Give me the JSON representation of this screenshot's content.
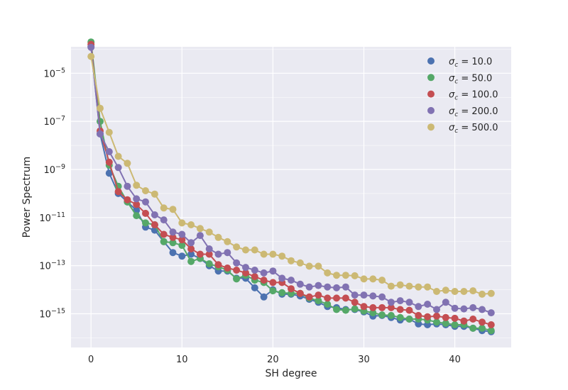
{
  "chart_data": {
    "type": "line",
    "xlabel": "SH degree",
    "ylabel": "Power Spectrum",
    "xlim": [
      -2.2,
      46.2
    ],
    "ylim_exponent": [
      -16.4,
      -3.9
    ],
    "yscale": "log",
    "grid": true,
    "legend_position": "top-right",
    "x_ticks": [
      0,
      10,
      20,
      30,
      40
    ],
    "y_ticks": [
      {
        "exp": -15,
        "base": "10",
        "sup": "−15"
      },
      {
        "exp": -13,
        "base": "10",
        "sup": "−13"
      },
      {
        "exp": -11,
        "base": "10",
        "sup": "−11"
      },
      {
        "exp": -9,
        "base": "10",
        "sup": "−9"
      },
      {
        "exp": -7,
        "base": "10",
        "sup": "−7"
      },
      {
        "exp": -5,
        "base": "10",
        "sup": "−5"
      }
    ],
    "x": [
      0,
      1,
      2,
      3,
      4,
      5,
      6,
      7,
      8,
      9,
      10,
      11,
      12,
      13,
      14,
      15,
      16,
      17,
      18,
      19,
      20,
      21,
      22,
      23,
      24,
      25,
      26,
      27,
      28,
      29,
      30,
      31,
      32,
      33,
      34,
      35,
      36,
      37,
      38,
      39,
      40,
      41,
      42,
      43,
      44
    ],
    "series": [
      {
        "name": "σc = 10.0",
        "legend_value": "10.0",
        "color": "#4c72b0",
        "values": [
          "1.3e-4",
          "3.0e-8",
          "7.0e-10",
          "1.0e-10",
          "4.5e-11",
          "2.0e-11",
          "4.0e-12",
          "3.0e-12",
          "1.0e-12",
          "3.5e-13",
          "2.5e-13",
          "3.0e-13",
          "2.0e-13",
          "1.0e-13",
          "6.0e-14",
          "6.0e-14",
          "3.0e-14",
          "3.0e-14",
          "1.2e-14",
          "5.0e-15",
          "1.0e-14",
          "6.5e-15",
          "6.5e-15",
          "5.5e-15",
          "4.0e-15",
          "3.0e-15",
          "2.0e-15",
          "1.8e-15",
          "1.5e-15",
          "1.5e-15",
          "1.2e-15",
          "8.0e-16",
          "8.5e-16",
          "7.0e-16",
          "5.5e-16",
          "6.0e-16",
          "3.8e-16",
          "3.5e-16",
          "3.8e-16",
          "3.5e-16",
          "3.0e-16",
          "3.0e-16",
          "2.5e-16",
          "2.0e-16",
          "1.8e-16"
        ]
      },
      {
        "name": "σc = 50.0",
        "legend_value": "50.0",
        "color": "#55a868",
        "values": [
          "2.0e-4",
          "1.0e-7",
          "1.5e-9",
          "2.0e-10",
          "4.5e-11",
          "1.2e-11",
          "6.0e-12",
          "5.0e-12",
          "1.0e-12",
          "9.0e-13",
          "7.0e-13",
          "1.5e-13",
          "2.0e-13",
          "1.2e-13",
          "9.0e-14",
          "6.5e-14",
          "2.8e-14",
          "4.0e-14",
          "2.5e-14",
          "2.0e-14",
          "9.0e-15",
          "7.5e-15",
          "7.0e-15",
          "7.0e-15",
          "4.5e-15",
          "3.5e-15",
          "2.5e-15",
          "1.5e-15",
          "1.4e-15",
          "1.6e-15",
          "1.3e-15",
          "1.1e-15",
          "9.0e-16",
          "8.5e-16",
          "7.0e-16",
          "6.0e-16",
          "6.0e-16",
          "5.5e-16",
          "4.5e-16",
          "4.0e-16",
          "3.5e-16",
          "3.5e-16",
          "2.5e-16",
          "2.5e-16",
          "2.0e-16"
        ]
      },
      {
        "name": "σc = 100.0",
        "legend_value": "100.0",
        "color": "#c44e52",
        "values": [
          "1.6e-4",
          "4.0e-8",
          "2.0e-9",
          "1.2e-10",
          "5.5e-11",
          "3.5e-11",
          "1.5e-11",
          "5.0e-12",
          "2.0e-12",
          "1.5e-12",
          "1.2e-12",
          "5.0e-13",
          "3.0e-13",
          "3.0e-13",
          "1.1e-13",
          "8.0e-14",
          "6.5e-14",
          "5.0e-14",
          "3.5e-14",
          "2.5e-14",
          "2.0e-14",
          "2.0e-14",
          "1.1e-14",
          "7.0e-15",
          "5.0e-15",
          "6.0e-15",
          "4.5e-15",
          "4.5e-15",
          "4.5e-15",
          "3.0e-15",
          "2.0e-15",
          "1.8e-15",
          "1.8e-15",
          "1.8e-15",
          "1.5e-15",
          "1.4e-15",
          "8.5e-16",
          "7.5e-16",
          "8.0e-16",
          "7.0e-16",
          "6.5e-16",
          "5.0e-16",
          "6.0e-16",
          "4.5e-16",
          "3.5e-16"
        ]
      },
      {
        "name": "σc = 200.0",
        "legend_value": "200.0",
        "color": "#8172b2",
        "values": [
          "1.2e-4",
          "3.0e-8",
          "5.5e-9",
          "1.2e-9",
          "2.0e-10",
          "6.0e-11",
          "4.5e-11",
          "1.3e-11",
          "8.0e-12",
          "2.5e-12",
          "2.0e-12",
          "9.0e-13",
          "1.8e-12",
          "5.0e-13",
          "3.0e-13",
          "3.5e-13",
          "1.3e-13",
          "8.5e-14",
          "6.5e-14",
          "5.0e-14",
          "6.0e-14",
          "3.0e-14",
          "2.5e-14",
          "1.7e-14",
          "1.3e-14",
          "1.5e-14",
          "1.3e-14",
          "1.2e-14",
          "1.3e-14",
          "6.0e-15",
          "6.0e-15",
          "5.5e-15",
          "5.0e-15",
          "3.0e-15",
          "3.5e-15",
          "3.0e-15",
          "2.0e-15",
          "2.5e-15",
          "1.5e-15",
          "3.0e-15",
          "1.7e-15",
          "1.6e-15",
          "1.8e-15",
          "1.5e-15",
          "1.1e-15"
        ]
      },
      {
        "name": "σc = 500.0",
        "legend_value": "500.0",
        "color": "#ccb974",
        "values": [
          "5.0e-5",
          "3.5e-7",
          "3.5e-8",
          "3.5e-9",
          "1.8e-9",
          "2.2e-10",
          "1.3e-10",
          "9.5e-11",
          "2.5e-11",
          "2.2e-11",
          "6.0e-12",
          "5.0e-12",
          "3.5e-12",
          "2.5e-12",
          "1.5e-12",
          "1.0e-12",
          "6.0e-13",
          "4.5e-13",
          "4.5e-13",
          "3.0e-13",
          "3.0e-13",
          "2.5e-13",
          "1.6e-13",
          "1.3e-13",
          "9.5e-14",
          "9.5e-14",
          "5.0e-14",
          "4.0e-14",
          "4.0e-14",
          "3.8e-14",
          "2.8e-14",
          "2.8e-14",
          "2.5e-14",
          "1.4e-14",
          "1.6e-14",
          "1.4e-14",
          "1.3e-14",
          "1.3e-14",
          "8.5e-15",
          "9.5e-15",
          "8.5e-15",
          "8.5e-15",
          "9.0e-15",
          "6.5e-15",
          "7.0e-15"
        ]
      }
    ]
  }
}
